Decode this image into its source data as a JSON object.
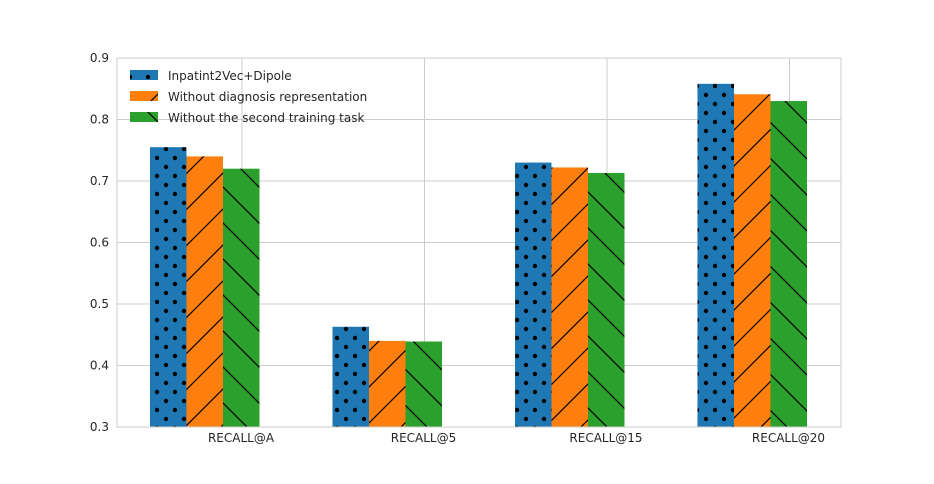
{
  "chart_data": {
    "type": "bar",
    "categories": [
      "RECALL@A",
      "RECALL@5",
      "RECALL@15",
      "RECALL@20"
    ],
    "series": [
      {
        "name": "Inpatint2Vec+Dipole",
        "values": [
          0.755,
          0.463,
          0.73,
          0.858
        ],
        "color": "#1f77b4",
        "hatch": "dots"
      },
      {
        "name": "Without diagnosis representation",
        "values": [
          0.74,
          0.44,
          0.722,
          0.841
        ],
        "color": "#ff7f0e",
        "hatch": "forward-slash"
      },
      {
        "name": "Without the second training task",
        "values": [
          0.72,
          0.439,
          0.713,
          0.83
        ],
        "color": "#2ca02c",
        "hatch": "back-slash"
      }
    ],
    "ylim": [
      0.3,
      0.9
    ],
    "yticks": [
      "0.3",
      "0.4",
      "0.5",
      "0.6",
      "0.7",
      "0.8",
      "0.9"
    ],
    "grid": true,
    "legend_position": "top-left",
    "title": "",
    "xlabel": "",
    "ylabel": ""
  }
}
